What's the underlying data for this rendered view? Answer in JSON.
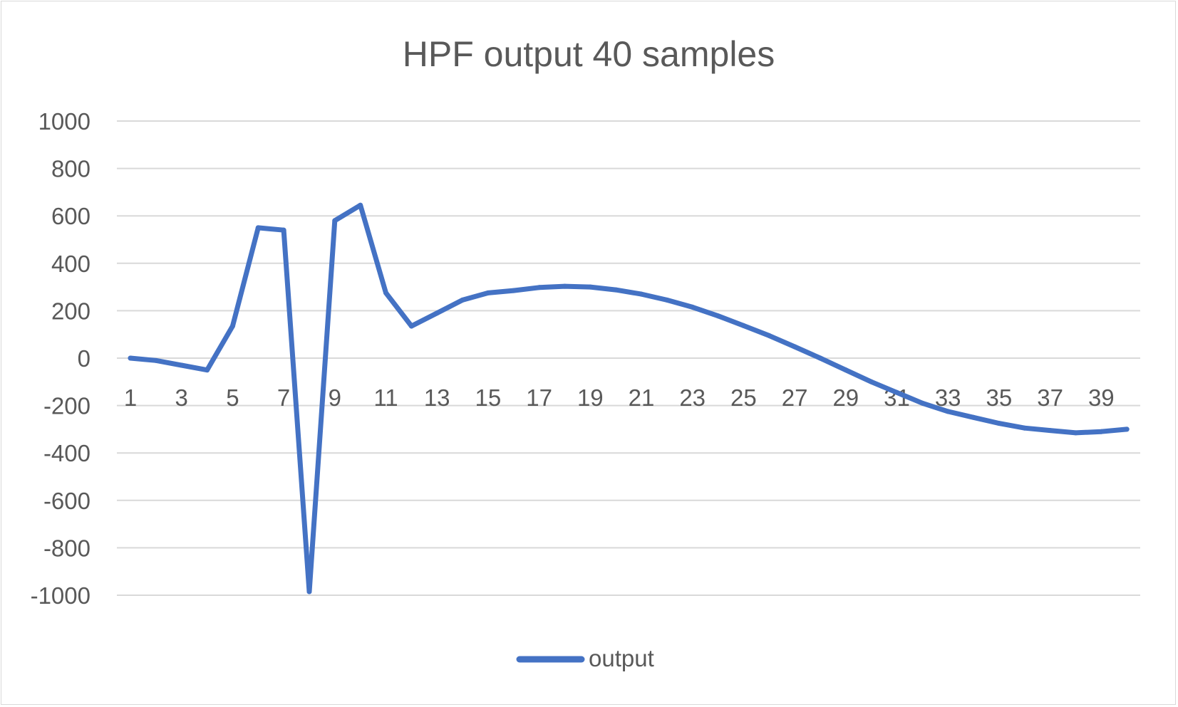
{
  "chart_data": {
    "type": "line",
    "title": "HPF output 40 samples",
    "xlabel": "",
    "ylabel": "",
    "ylim": [
      -1000,
      1000
    ],
    "y_ticks": [
      1000,
      800,
      600,
      400,
      200,
      0,
      -200,
      -400,
      -600,
      -800,
      -1000
    ],
    "y_tick_labels": [
      "1000",
      "800",
      "600",
      "400",
      "200",
      "0",
      "-200",
      "-400",
      "-600",
      "-800",
      "-1000"
    ],
    "x_tick_labels": [
      "1",
      "3",
      "5",
      "7",
      "9",
      "11",
      "13",
      "15",
      "17",
      "19",
      "21",
      "23",
      "25",
      "27",
      "29",
      "31",
      "33",
      "35",
      "37",
      "39"
    ],
    "grid": true,
    "legend_position": "bottom",
    "series": [
      {
        "name": "output",
        "color": "#4472c4",
        "x": [
          1,
          2,
          3,
          4,
          5,
          6,
          7,
          8,
          9,
          10,
          11,
          12,
          13,
          14,
          15,
          16,
          17,
          18,
          19,
          20,
          21,
          22,
          23,
          24,
          25,
          26,
          27,
          28,
          29,
          30,
          31,
          32,
          33,
          34,
          35,
          36,
          37,
          38,
          39,
          40
        ],
        "values": [
          0,
          -10,
          -30,
          -50,
          135,
          550,
          540,
          -985,
          580,
          645,
          275,
          135,
          190,
          245,
          275,
          285,
          298,
          303,
          300,
          288,
          270,
          245,
          215,
          178,
          137,
          95,
          48,
          0,
          -50,
          -100,
          -145,
          -190,
          -225,
          -250,
          -275,
          -295,
          -305,
          -315,
          -310,
          -300
        ]
      }
    ]
  }
}
